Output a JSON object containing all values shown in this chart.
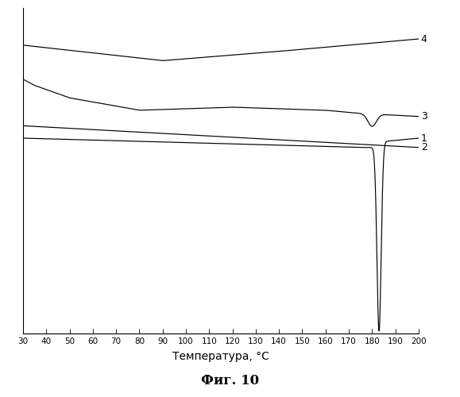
{
  "title": "Фиг. 10",
  "xlabel": "Температура, °C",
  "x_min": 30,
  "x_max": 200,
  "x_ticks": [
    30,
    40,
    50,
    60,
    70,
    80,
    90,
    100,
    110,
    120,
    130,
    140,
    150,
    160,
    170,
    180,
    190,
    200
  ],
  "curve_color": "#000000",
  "background_color": "#ffffff"
}
